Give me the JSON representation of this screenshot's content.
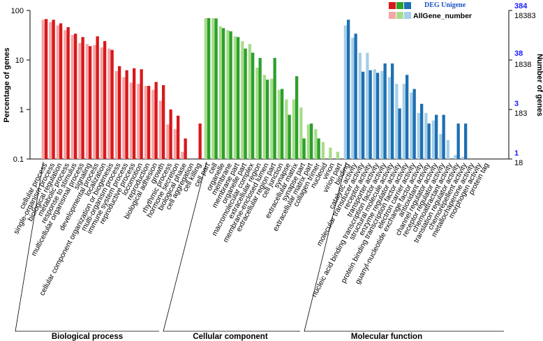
{
  "chart_data": {
    "type": "bar",
    "y_left": {
      "label": "Percentage of genes",
      "scale": "log",
      "ylim": [
        0.1,
        100
      ],
      "ticks": [
        "100",
        "10",
        "1",
        "0.1"
      ]
    },
    "y_right": {
      "label": "Number of genes",
      "allgene_ticks": [
        "18383",
        "1838",
        "183",
        "18"
      ],
      "deg_ticks": [
        "384",
        "38",
        "3",
        "1"
      ]
    },
    "legend": {
      "deg": "DEG Unigene",
      "all": "AllGene_number"
    },
    "groups": [
      {
        "name": "Biological process",
        "colors": {
          "all": "#f4a6a6",
          "deg": "#d7191c"
        },
        "categories": [
          "cellular process",
          "single-organism process",
          "biological regulation",
          "metabolic process",
          "response to stimulus",
          "multicellular organismal process",
          "signaling",
          "developmental process",
          "localization",
          "cellular component organization or biogenesis",
          "multi-organism process",
          "immune system process",
          "reproductive process",
          "locomotion",
          "reproduction",
          "biological adhesion",
          "growth",
          "rhythmic process",
          "hormone secretion",
          "biological phase",
          "cell aggregation",
          "cell killing"
        ],
        "all": [
          65,
          58,
          50,
          40,
          32,
          22,
          21,
          20,
          18,
          17,
          6.0,
          4.5,
          3.5,
          3.3,
          3.0,
          2.5,
          1.5,
          0.5,
          0.4,
          0.14,
          null,
          null
        ],
        "deg": [
          67,
          65,
          55,
          46,
          34,
          29,
          19,
          30,
          24,
          16,
          7.5,
          6.2,
          6.8,
          6.5,
          3.0,
          3.6,
          3.1,
          1.0,
          0.75,
          0.26,
          null,
          0.52
        ]
      },
      {
        "name": "Cellular component",
        "colors": {
          "all": "#a8dc8c",
          "deg": "#2ca02c"
        },
        "categories": [
          "cell part",
          "cell",
          "organelle",
          "membrane",
          "membrane part",
          "organelle part",
          "macromolecular complex",
          "extracellular region",
          "membrane-enclosed lumen",
          "extracellular region part",
          "cell junction",
          "synapse",
          "extracellular matrix",
          "synapse part",
          "extracellular matrix part",
          "collagen trimer",
          "nucleoid",
          "virion",
          "virion part"
        ],
        "all": [
          70,
          70,
          48,
          40,
          30,
          24,
          21,
          7.0,
          5.0,
          4.2,
          2.5,
          1.6,
          1.6,
          1.1,
          0.5,
          0.4,
          0.22,
          0.17,
          0.14
        ],
        "deg": [
          70,
          69,
          44,
          38,
          29,
          17,
          14,
          11,
          4.0,
          11,
          2.6,
          0.78,
          4.7,
          0.26,
          0.52,
          0.26,
          null,
          null,
          null
        ]
      },
      {
        "name": "Molecular function",
        "colors": {
          "all": "#a6cfe8",
          "deg": "#1f6fb2"
        },
        "categories": [
          "binding",
          "catalytic activity",
          "molecular transducer activity",
          "receptor activity",
          "transporter activity",
          "nucleic acid binding transcription factor activity",
          "structural molecule activity",
          "enzyme regulator activity",
          "protein binding transcription factor activity",
          "electron carrier activity",
          "guanyl-nucleotide exchange factor activity",
          "antioxidant activity",
          "channel regulator activity",
          "receptor regulator activity",
          "chemoattractant activity",
          "translation regulator activity",
          "chemorepellent activity",
          "metallochaperone activity",
          "morphogen activity",
          "protein tag"
        ],
        "all": [
          50,
          28,
          14,
          14,
          6.5,
          6.0,
          4.5,
          3.3,
          3.3,
          2.2,
          0.85,
          0.85,
          0.6,
          0.32,
          0.24,
          0.12,
          0.11,
          null,
          null,
          null
        ],
        "deg": [
          65,
          34,
          5.8,
          6.2,
          5.5,
          8.5,
          8.5,
          1.05,
          5.0,
          2.6,
          1.3,
          0.52,
          0.78,
          0.78,
          null,
          0.52,
          0.52,
          null,
          null,
          null
        ]
      }
    ]
  }
}
